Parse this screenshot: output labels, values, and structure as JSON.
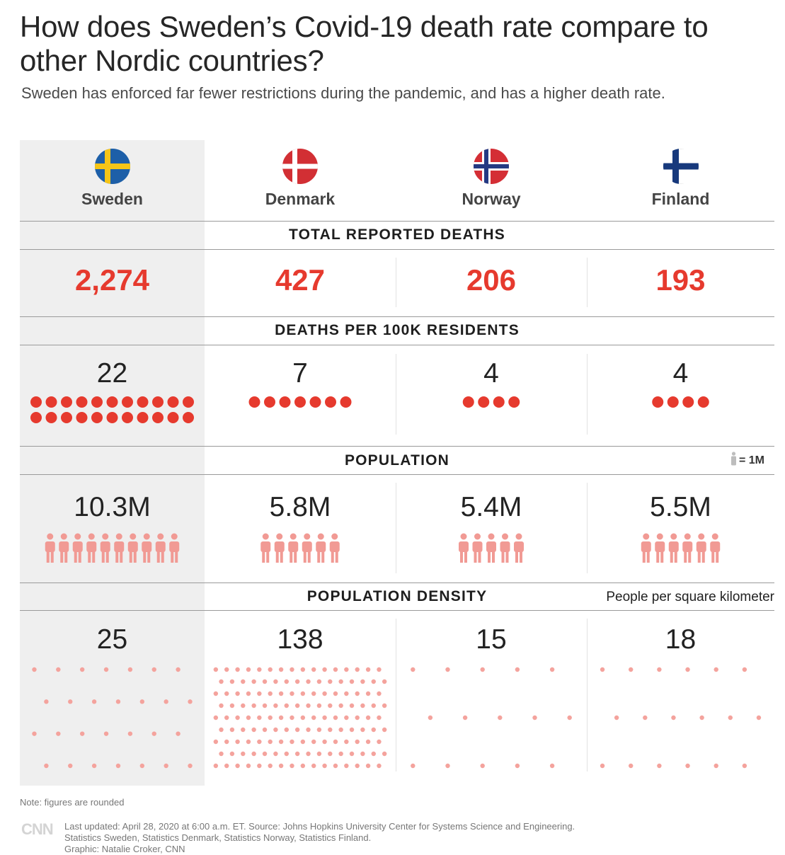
{
  "title": "How does Sweden’s Covid-19 death rate compare to other Nordic countries?",
  "subtitle": "Sweden has enforced far fewer restrictions during the pandemic, and has a higher death rate.",
  "colors": {
    "deaths_red": "#e63a2e",
    "person_pink": "#f19a94",
    "density_dot": "#f4a39d",
    "highlight_bg": "#efefef"
  },
  "sections": {
    "total_deaths": "TOTAL REPORTED DEATHS",
    "deaths_per_100k": "DEATHS PER 100K RESIDENTS",
    "population": "POPULATION",
    "population_density": "POPULATION DENSITY"
  },
  "legend": {
    "person_icon": "person-icon",
    "person_unit": "= 1M",
    "density_unit": "People per square kilometer"
  },
  "countries": [
    {
      "name": "Sweden",
      "flag": "sweden-flag-icon",
      "total_deaths": "2,274",
      "deaths_per_100k": "22",
      "population": "10.3M",
      "density": "25"
    },
    {
      "name": "Denmark",
      "flag": "denmark-flag-icon",
      "total_deaths": "427",
      "deaths_per_100k": "7",
      "population": "5.8M",
      "density": "138"
    },
    {
      "name": "Norway",
      "flag": "norway-flag-icon",
      "total_deaths": "206",
      "deaths_per_100k": "4",
      "population": "5.4M",
      "density": "15"
    },
    {
      "name": "Finland",
      "flag": "finland-flag-icon",
      "total_deaths": "193",
      "deaths_per_100k": "4",
      "population": "5.5M",
      "density": "18"
    }
  ],
  "chart_data": {
    "type": "table",
    "title": "How does Sweden’s Covid-19 death rate compare to other Nordic countries?",
    "categories": [
      "Sweden",
      "Denmark",
      "Norway",
      "Finland"
    ],
    "series": [
      {
        "name": "TOTAL REPORTED DEATHS",
        "values": [
          2274,
          427,
          206,
          193
        ]
      },
      {
        "name": "DEATHS PER 100K RESIDENTS",
        "values": [
          22,
          7,
          4,
          4
        ]
      },
      {
        "name": "POPULATION",
        "values": [
          10.3,
          5.8,
          5.4,
          5.5
        ],
        "unit": "M"
      },
      {
        "name": "POPULATION DENSITY",
        "values": [
          25,
          138,
          15,
          18
        ],
        "unit": "People per square kilometer"
      }
    ],
    "highlight": "Sweden"
  },
  "note": "Note: figures are rounded",
  "footer": {
    "logo": "CNN",
    "line1": "Last updated: April 28, 2020 at 6:00 a.m. ET. Source: Johns Hopkins University Center for Systems Science and Engineering.",
    "line2": "Statistics Sweden, Statistics Denmark, Statistics Norway, Statistics Finland.",
    "line3": "Graphic: Natalie Croker, CNN"
  }
}
